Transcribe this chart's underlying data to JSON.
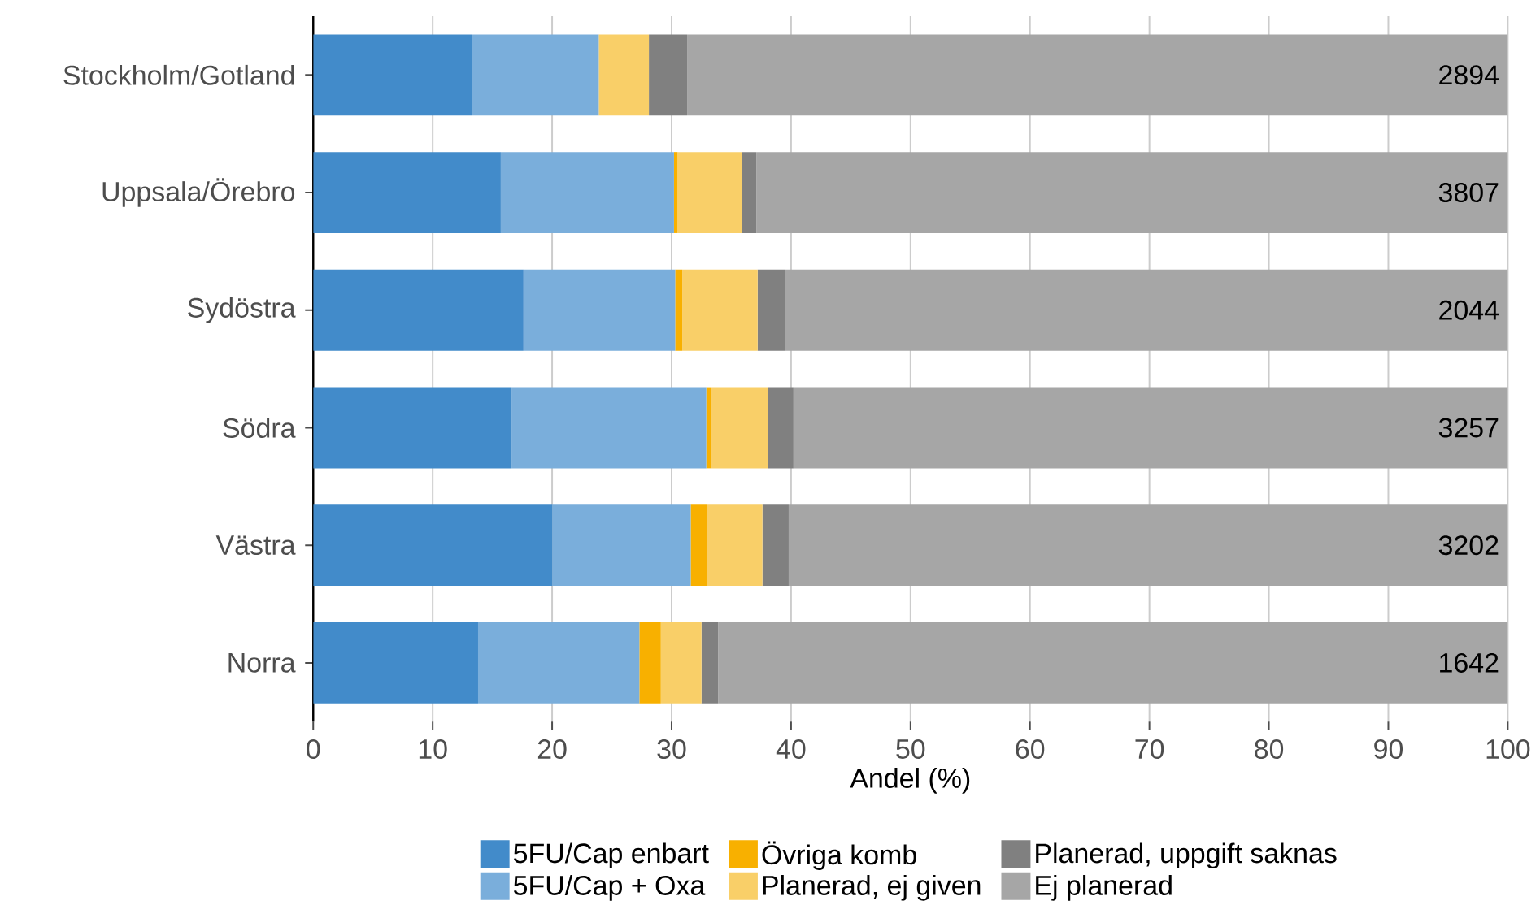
{
  "chart_data": {
    "type": "bar",
    "orientation": "horizontal",
    "stacked": true,
    "xlabel": "Andel (%)",
    "categories": [
      "Stockholm/Gotland",
      "Uppsala/Örebro",
      "Sydöstra",
      "Södra",
      "Västra",
      "Norra"
    ],
    "series": [
      {
        "name": "5FU/Cap enbart",
        "color": "#428bca",
        "values": [
          13.3,
          15.7,
          17.6,
          16.6,
          20.0,
          13.8
        ]
      },
      {
        "name": "5FU/Cap + Oxa",
        "color": "#7aaedb",
        "values": [
          10.6,
          14.5,
          12.7,
          16.3,
          11.6,
          13.5
        ]
      },
      {
        "name": "Övriga komb",
        "color": "#f8b000",
        "values": [
          0,
          0.3,
          0.6,
          0.4,
          1.4,
          1.8
        ]
      },
      {
        "name": "Planerad, ej given",
        "color": "#f9cf68",
        "values": [
          4.2,
          5.4,
          6.3,
          4.8,
          4.6,
          3.4
        ]
      },
      {
        "name": "Planerad, uppgift saknas",
        "color": "#808080",
        "values": [
          3.2,
          1.2,
          2.3,
          2.1,
          2.2,
          1.4
        ]
      },
      {
        "name": "Ej planerad",
        "color": "#a6a6a6",
        "values": [
          68.7,
          62.9,
          60.5,
          59.8,
          60.2,
          66.1
        ]
      }
    ],
    "xlim": [
      0,
      100
    ],
    "xticks": [
      0,
      10,
      20,
      30,
      40,
      50,
      60,
      70,
      80,
      90,
      100
    ],
    "grid": "x",
    "legend": "bottom",
    "annotations": [
      "2894",
      "3807",
      "2044",
      "3257",
      "3202",
      "1642"
    ]
  }
}
